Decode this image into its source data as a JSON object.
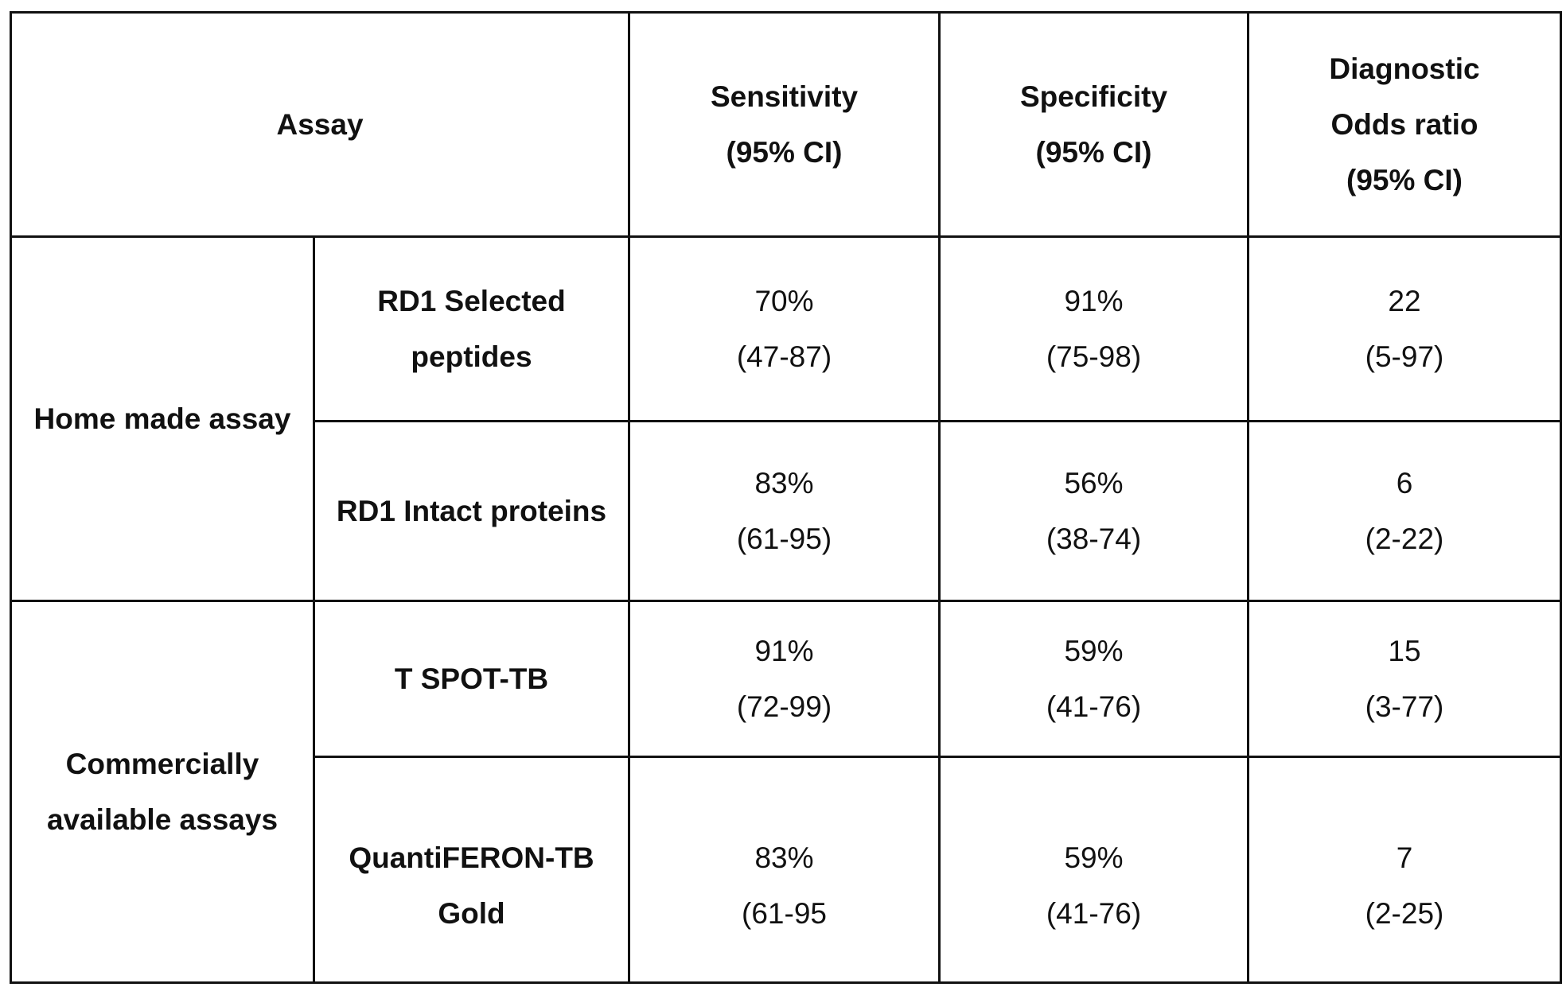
{
  "table": {
    "headers": {
      "assay": "Assay",
      "sensitivity": [
        "Sensitivity",
        "(95% CI)"
      ],
      "specificity": [
        "Specificity",
        "(95% CI)"
      ],
      "odds": [
        "Diagnostic",
        "Odds ratio",
        "(95% CI)"
      ]
    },
    "groups": [
      {
        "name": [
          "Home made assay"
        ],
        "rows": [
          {
            "assay": [
              "RD1 Selected",
              "peptides"
            ],
            "sensitivity": [
              "70%",
              "(47-87)"
            ],
            "specificity": [
              "91%",
              "(75-98)"
            ],
            "odds": [
              "22",
              "(5-97)"
            ]
          },
          {
            "assay": [
              "RD1 Intact proteins"
            ],
            "sensitivity": [
              "83%",
              "(61-95)"
            ],
            "specificity": [
              "56%",
              "(38-74)"
            ],
            "odds": [
              "6",
              "(2-22)"
            ]
          }
        ]
      },
      {
        "name": [
          "Commercially",
          "available assays"
        ],
        "rows": [
          {
            "assay": [
              "T SPOT-TB"
            ],
            "sensitivity": [
              "91%",
              "(72-99)"
            ],
            "specificity": [
              "59%",
              "(41-76)"
            ],
            "odds": [
              "15",
              "(3-77)"
            ]
          },
          {
            "assay": [
              "QuantiFERON-TB",
              "Gold"
            ],
            "sensitivity": [
              "83%",
              "(61-95"
            ],
            "specificity": [
              "59%",
              "(41-76)"
            ],
            "odds": [
              "7",
              "(2-25)"
            ]
          }
        ]
      }
    ]
  }
}
